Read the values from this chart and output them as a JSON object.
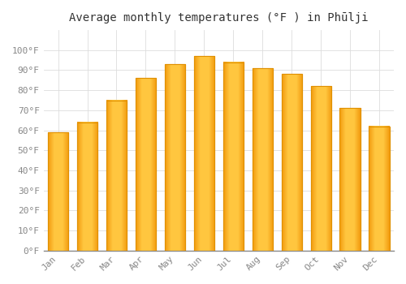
{
  "title": "Average monthly temperatures (°F ) in Phūlji",
  "months": [
    "Jan",
    "Feb",
    "Mar",
    "Apr",
    "May",
    "Jun",
    "Jul",
    "Aug",
    "Sep",
    "Oct",
    "Nov",
    "Dec"
  ],
  "values": [
    59,
    64,
    75,
    86,
    93,
    97,
    94,
    91,
    88,
    82,
    71,
    62
  ],
  "bar_color_inner": "#FFB732",
  "bar_color_outer": "#F5A800",
  "bar_edge_color": "#E09000",
  "background_color": "#FFFFFF",
  "plot_bg_color": "#FFFFFF",
  "grid_color": "#DDDDDD",
  "ylim": [
    0,
    110
  ],
  "yticks": [
    0,
    10,
    20,
    30,
    40,
    50,
    60,
    70,
    80,
    90,
    100
  ],
  "ytick_labels": [
    "0°F",
    "10°F",
    "20°F",
    "30°F",
    "40°F",
    "50°F",
    "60°F",
    "70°F",
    "80°F",
    "90°F",
    "100°F"
  ],
  "title_fontsize": 10,
  "tick_fontsize": 8,
  "tick_color": "#888888",
  "axis_color": "#888888",
  "font_family": "monospace"
}
